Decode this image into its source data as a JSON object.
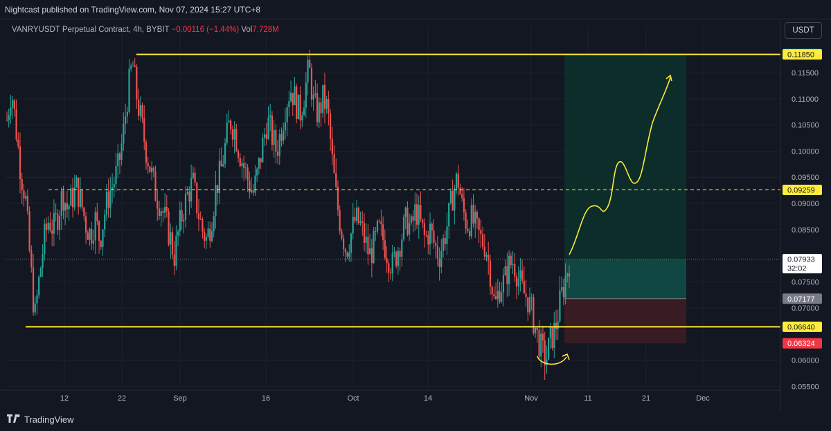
{
  "header": {
    "publisher": "Nightcast published on TradingView.com, Nov 07, 2024 15:27 UTC+8"
  },
  "legend": {
    "symbol": "VANRYUSDT Perpetual Contract, 4h, BYBIT",
    "change": "−0.00116 (−1.44%)",
    "vol_label": "Vol",
    "vol_value": "7.728M"
  },
  "currency_button": "USDT",
  "footer": {
    "brand": "TradingView"
  },
  "colors": {
    "background": "#131722",
    "up_candle": "#26a69a",
    "down_candle": "#ef5350",
    "level_line": "#ffeb3b",
    "target_zone": "#0e3b36",
    "stop_zone": "#3f1f26"
  },
  "chart_data": {
    "type": "candlestick",
    "symbol": "VANRYUSDT",
    "timeframe": "4h",
    "y_range": [
      0.0548,
      0.1215
    ],
    "y_ticks": [
      "0.11500",
      "0.11000",
      "0.10500",
      "0.10000",
      "0.09500",
      "0.09000",
      "0.08500",
      "0.07500",
      "0.07000",
      "0.06000",
      "0.05500"
    ],
    "x_ticks": [
      "12",
      "22",
      "Sep",
      "16",
      "Oct",
      "14",
      "Nov",
      "11",
      "21",
      "Dec"
    ],
    "horizontal_levels": [
      {
        "value": 0.1185,
        "label": "0.11850",
        "style": "solid"
      },
      {
        "value": 0.09259,
        "label": "0.09259",
        "style": "dashed"
      },
      {
        "value": 0.0664,
        "label": "0.06640",
        "style": "solid"
      }
    ],
    "position_tool": {
      "type": "long",
      "entry": 0.07177,
      "target": 0.11857,
      "stop": 0.06324,
      "labels": {
        "target": "0.11857",
        "entry": "0.07177",
        "stop": "0.06324"
      }
    },
    "current_price": {
      "value": 0.07933,
      "label": "0.07933",
      "countdown": "32:02"
    },
    "projection_path_note": "hand-drawn yellow arrow projecting price upward toward 0.115",
    "price_path": [
      0.106,
      0.112,
      0.104,
      0.096,
      0.091,
      0.079,
      0.068,
      0.076,
      0.083,
      0.087,
      0.085,
      0.088,
      0.092,
      0.089,
      0.091,
      0.093,
      0.09,
      0.086,
      0.084,
      0.087,
      0.083,
      0.088,
      0.092,
      0.094,
      0.097,
      0.103,
      0.111,
      0.117,
      0.11,
      0.105,
      0.1,
      0.096,
      0.092,
      0.09,
      0.087,
      0.084,
      0.08,
      0.085,
      0.089,
      0.092,
      0.094,
      0.089,
      0.085,
      0.083,
      0.087,
      0.093,
      0.096,
      0.101,
      0.106,
      0.104,
      0.1,
      0.097,
      0.094,
      0.092,
      0.096,
      0.101,
      0.106,
      0.103,
      0.1,
      0.104,
      0.109,
      0.112,
      0.11,
      0.107,
      0.111,
      0.116,
      0.109,
      0.107,
      0.11,
      0.108,
      0.098,
      0.09,
      0.085,
      0.081,
      0.084,
      0.087,
      0.086,
      0.083,
      0.08,
      0.082,
      0.085,
      0.083,
      0.08,
      0.078,
      0.081,
      0.084,
      0.087,
      0.085,
      0.089,
      0.086,
      0.083,
      0.085,
      0.082,
      0.08,
      0.083,
      0.087,
      0.092,
      0.095,
      0.089,
      0.086,
      0.087,
      0.085,
      0.083,
      0.082,
      0.077,
      0.07,
      0.074,
      0.075,
      0.078,
      0.079,
      0.076,
      0.073,
      0.072,
      0.069,
      0.065,
      0.062,
      0.06,
      0.064,
      0.066,
      0.071,
      0.075,
      0.079
    ]
  }
}
